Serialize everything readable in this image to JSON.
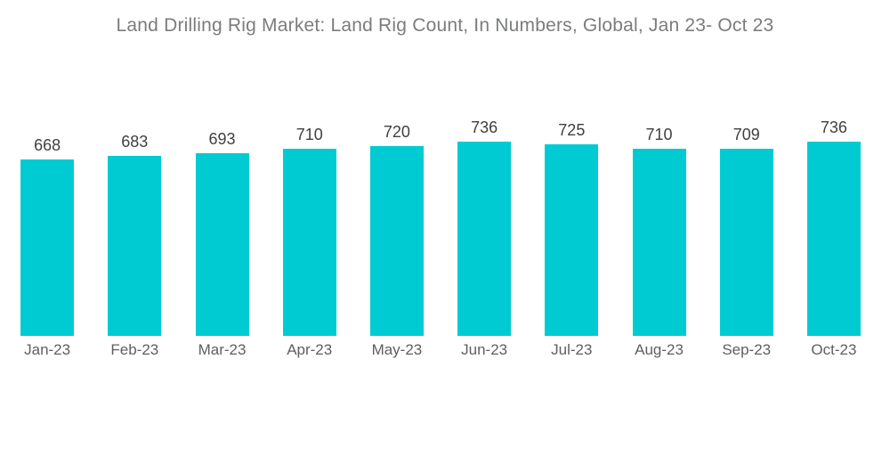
{
  "title": "Land Drilling Rig Market: Land Rig Count, In Numbers, Global, Jan 23- Oct 23",
  "colors": {
    "bar": "#00cbd2",
    "title": "#7b7c7e",
    "value_label": "#404040",
    "axis_label": "#5d5f61",
    "background": "#ffffff"
  },
  "chart_data": {
    "type": "bar",
    "title": "Land Drilling Rig Market: Land Rig Count, In Numbers, Global, Jan 23- Oct 23",
    "categories": [
      "Jan-23",
      "Feb-23",
      "Mar-23",
      "Apr-23",
      "May-23",
      "Jun-23",
      "Jul-23",
      "Aug-23",
      "Sep-23",
      "Oct-23"
    ],
    "values": [
      668,
      683,
      693,
      710,
      720,
      736,
      725,
      710,
      709,
      736
    ],
    "xlabel": "",
    "ylabel": "",
    "ylim": [
      0,
      780
    ],
    "grid": false,
    "legend": false,
    "value_labels": true,
    "bar_labels_position": "above"
  }
}
